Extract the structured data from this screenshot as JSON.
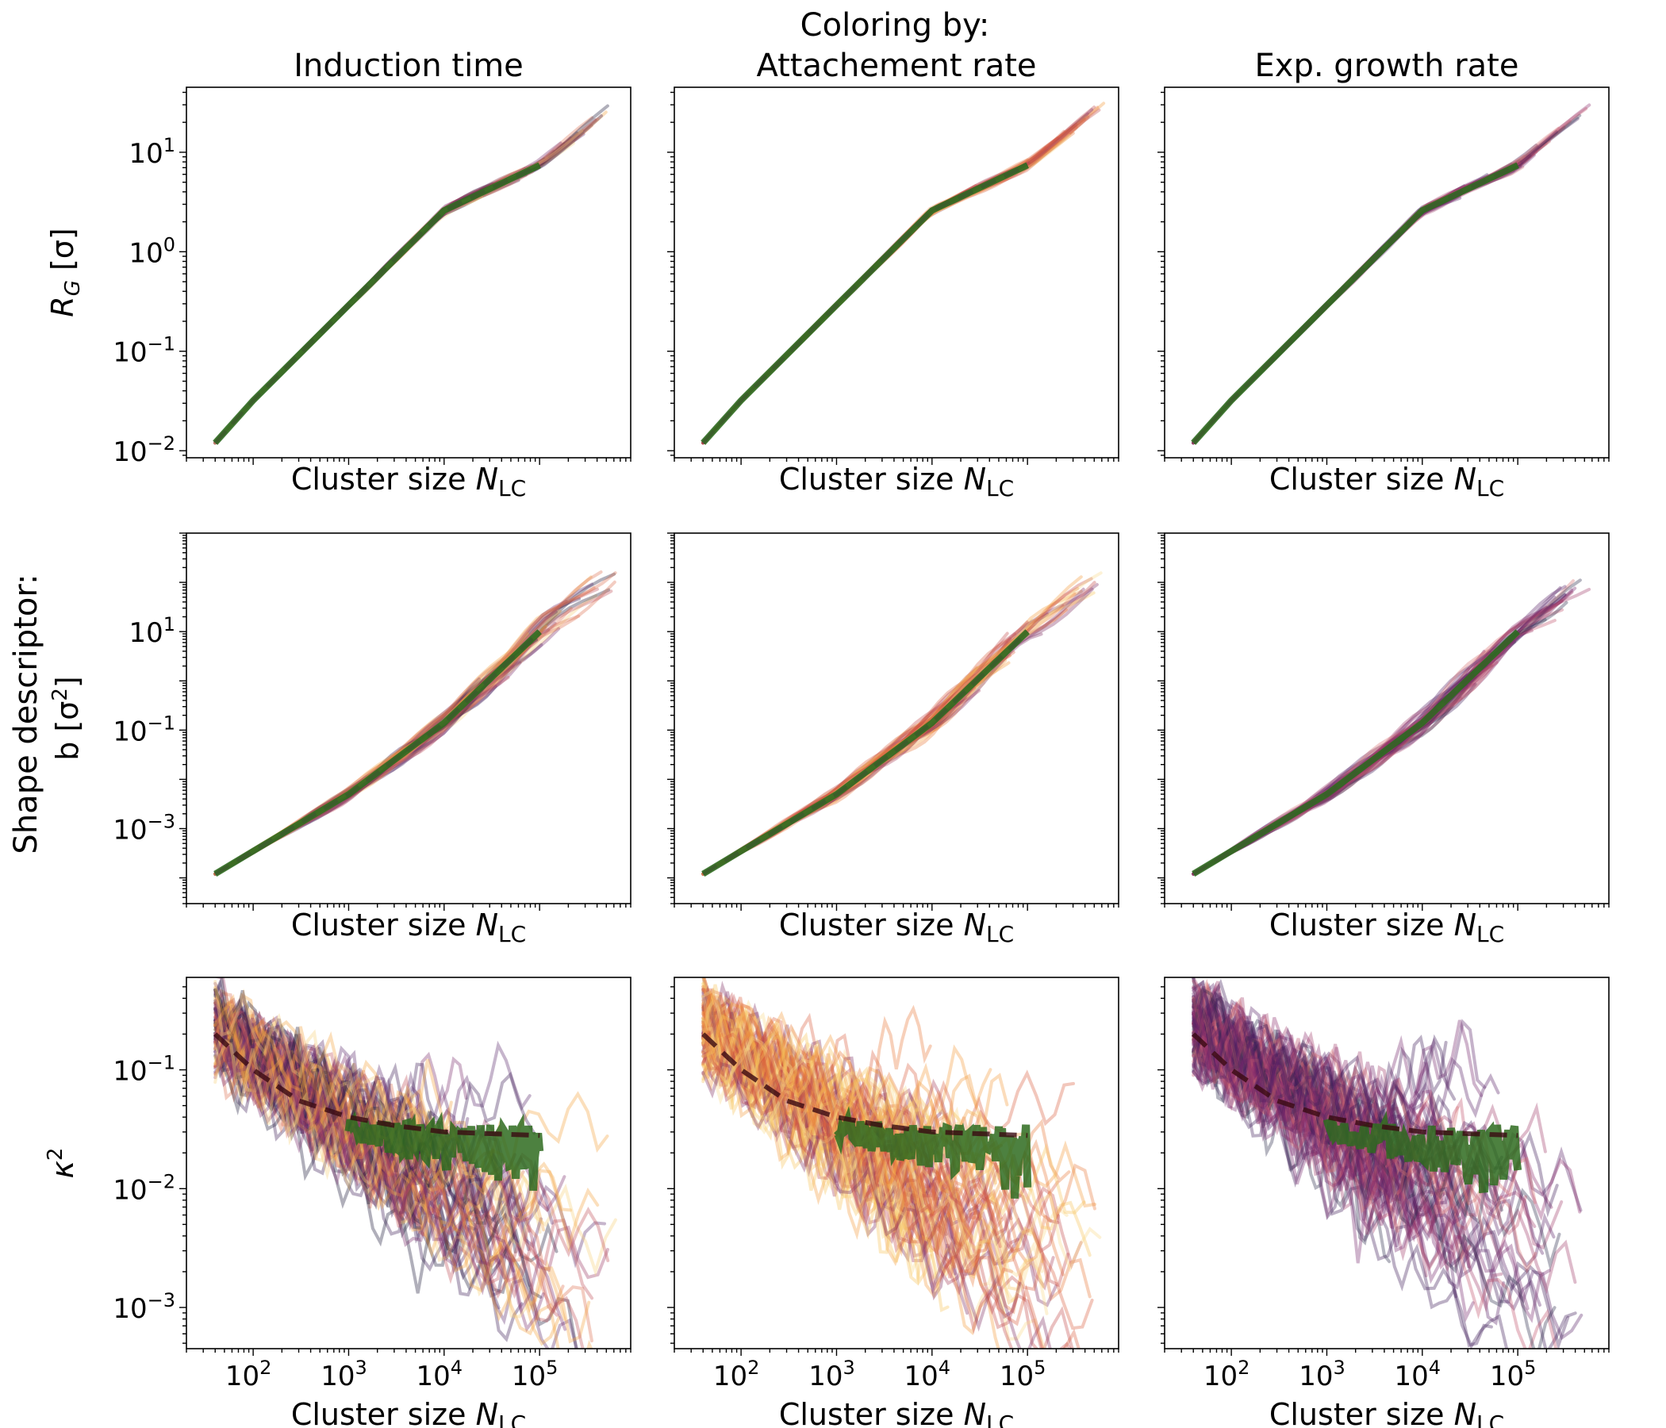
{
  "figure": {
    "suptitle": "Coloring by:",
    "column_titles": [
      "Induction time",
      "Attachement rate",
      "Exp. growth rate"
    ],
    "row_group_label": "Shape descriptor:",
    "colors": {
      "reference_line": "#2e6b1f",
      "dashed_fit": "#3a5f2a",
      "dark_dashed_fit": "#3a0a12",
      "palette_column_1": [
        "#1c1a3a",
        "#3b1e55",
        "#5c2a6c",
        "#7a2f6e",
        "#9a3a63",
        "#c0505a",
        "#de7050",
        "#f4a43e",
        "#f7d27a"
      ],
      "palette_column_2": [
        "#f5c35a",
        "#f39b3c",
        "#e8783a",
        "#d95f3f",
        "#f8d98a",
        "#c24a4a",
        "#a63d5a",
        "#7e2e62"
      ],
      "palette_column_3": [
        "#3f1e5a",
        "#5a2368",
        "#75296c",
        "#8b2f6c",
        "#a03c6a",
        "#c0506a",
        "#d87070",
        "#2a2a4a"
      ]
    }
  },
  "chart_data": [
    {
      "type": "line",
      "row": 1,
      "col": 1,
      "title": "Induction time",
      "xlabel": "Cluster size N_LC",
      "xlabel_main": "Cluster size ",
      "xlabel_italic": "N",
      "xlabel_sub": "LC",
      "ylabel": "R_G [σ]",
      "ylabel_main": "R",
      "ylabel_sub": "G",
      "ylabel_rest": " [σ]",
      "xscale": "log",
      "yscale": "log",
      "xlim": [
        20,
        900000
      ],
      "ylim": [
        0.0085,
        45
      ],
      "yticks": [
        {
          "value": 0.01,
          "label": "10",
          "exp": "−2"
        },
        {
          "value": 0.1,
          "label": "10",
          "exp": "−1"
        },
        {
          "value": 1,
          "label": "10",
          "exp": "0"
        },
        {
          "value": 10,
          "label": "10",
          "exp": "1"
        }
      ],
      "xticks": [],
      "series": [
        {
          "name": "mean fit (dashed)",
          "x": [
            40,
            100,
            1000,
            10000,
            100000
          ],
          "y": [
            0.012,
            0.032,
            0.29,
            2.6,
            7.4
          ]
        },
        {
          "name": "individual trajectories",
          "x": [
            40,
            600000
          ],
          "y": [
            0.012,
            30
          ]
        }
      ]
    },
    {
      "type": "line",
      "row": 1,
      "col": 2,
      "title": "Attachement rate",
      "xlabel": "Cluster size N_LC",
      "xlabel_main": "Cluster size ",
      "xlabel_italic": "N",
      "xlabel_sub": "LC",
      "xscale": "log",
      "yscale": "log",
      "xlim": [
        20,
        900000
      ],
      "ylim": [
        0.0085,
        45
      ],
      "yticks": [],
      "xticks": [],
      "series": [
        {
          "name": "mean fit (dashed)",
          "x": [
            40,
            100,
            1000,
            10000,
            100000
          ],
          "y": [
            0.012,
            0.032,
            0.29,
            2.6,
            7.4
          ]
        },
        {
          "name": "individual trajectories",
          "x": [
            40,
            600000
          ],
          "y": [
            0.012,
            30
          ]
        }
      ]
    },
    {
      "type": "line",
      "row": 1,
      "col": 3,
      "title": "Exp. growth rate",
      "xlabel": "Cluster size N_LC",
      "xlabel_main": "Cluster size ",
      "xlabel_italic": "N",
      "xlabel_sub": "LC",
      "xscale": "log",
      "yscale": "log",
      "xlim": [
        20,
        900000
      ],
      "ylim": [
        0.0085,
        45
      ],
      "yticks": [],
      "xticks": [],
      "series": [
        {
          "name": "mean fit (dashed)",
          "x": [
            40,
            100,
            1000,
            10000,
            100000
          ],
          "y": [
            0.012,
            0.032,
            0.29,
            2.6,
            7.4
          ]
        },
        {
          "name": "individual trajectories",
          "x": [
            40,
            600000
          ],
          "y": [
            0.012,
            30
          ]
        }
      ]
    },
    {
      "type": "line",
      "row": 2,
      "col": 1,
      "xlabel": "Cluster size N_LC",
      "xlabel_main": "Cluster size ",
      "xlabel_italic": "N",
      "xlabel_sub": "LC",
      "ylabel": "b [σ²]",
      "ylabel_main": "b [σ",
      "ylabel_sup": "2",
      "ylabel_rest": "]",
      "xscale": "log",
      "yscale": "log",
      "xlim": [
        20,
        900000
      ],
      "ylim": [
        3e-05,
        1000
      ],
      "yticks": [
        {
          "value": 0.001,
          "label": "10",
          "exp": "−3"
        },
        {
          "value": 0.1,
          "label": "10",
          "exp": "−1"
        },
        {
          "value": 10,
          "label": "10",
          "exp": "1"
        }
      ],
      "xticks": [],
      "series": [
        {
          "name": "mean fit (dashed)",
          "x": [
            40,
            100,
            1000,
            10000,
            100000
          ],
          "y": [
            0.00012,
            0.00035,
            0.005,
            0.14,
            10
          ]
        },
        {
          "name": "individual trajectories",
          "x": [
            40,
            600000
          ],
          "y": [
            0.0001,
            120
          ]
        }
      ]
    },
    {
      "type": "line",
      "row": 2,
      "col": 2,
      "xlabel": "Cluster size N_LC",
      "xlabel_main": "Cluster size ",
      "xlabel_italic": "N",
      "xlabel_sub": "LC",
      "xscale": "log",
      "yscale": "log",
      "xlim": [
        20,
        900000
      ],
      "ylim": [
        3e-05,
        1000
      ],
      "yticks": [],
      "xticks": [],
      "series": [
        {
          "name": "mean fit (dashed)",
          "x": [
            40,
            100,
            1000,
            10000,
            100000
          ],
          "y": [
            0.00012,
            0.00035,
            0.005,
            0.14,
            10
          ]
        },
        {
          "name": "individual trajectories",
          "x": [
            40,
            600000
          ],
          "y": [
            0.0001,
            120
          ]
        }
      ]
    },
    {
      "type": "line",
      "row": 2,
      "col": 3,
      "xlabel": "Cluster size N_LC",
      "xlabel_main": "Cluster size ",
      "xlabel_italic": "N",
      "xlabel_sub": "LC",
      "xscale": "log",
      "yscale": "log",
      "xlim": [
        20,
        900000
      ],
      "ylim": [
        3e-05,
        1000
      ],
      "yticks": [],
      "xticks": [],
      "series": [
        {
          "name": "mean fit (dashed)",
          "x": [
            40,
            100,
            1000,
            10000,
            100000
          ],
          "y": [
            0.00012,
            0.00035,
            0.005,
            0.14,
            10
          ]
        },
        {
          "name": "individual trajectories",
          "x": [
            40,
            600000
          ],
          "y": [
            0.0001,
            120
          ]
        }
      ]
    },
    {
      "type": "line",
      "row": 3,
      "col": 1,
      "xlabel": "Cluster size N_LC",
      "xlabel_main": "Cluster size ",
      "xlabel_italic": "N",
      "xlabel_sub": "LC",
      "ylabel": "κ²",
      "ylabel_main": "κ",
      "ylabel_sup": "2",
      "ylabel_rest": "",
      "xscale": "log",
      "yscale": "log",
      "xlim": [
        20,
        900000
      ],
      "ylim": [
        0.00045,
        0.6
      ],
      "yticks": [
        {
          "value": 0.001,
          "label": "10",
          "exp": "−3"
        },
        {
          "value": 0.01,
          "label": "10",
          "exp": "−2"
        },
        {
          "value": 0.1,
          "label": "10",
          "exp": "−1"
        }
      ],
      "xticks": [
        {
          "value": 100,
          "label": "10",
          "exp": "2"
        },
        {
          "value": 1000,
          "label": "10",
          "exp": "3"
        },
        {
          "value": 10000,
          "label": "10",
          "exp": "4"
        },
        {
          "value": 100000,
          "label": "10",
          "exp": "5"
        }
      ],
      "series": [
        {
          "name": "mean fit (dashed)",
          "x": [
            40,
            100,
            300,
            1000,
            3000,
            10000,
            100000
          ],
          "y": [
            0.2,
            0.1,
            0.055,
            0.04,
            0.034,
            0.03,
            0.028
          ]
        },
        {
          "name": "reference band",
          "x": [
            1000,
            10000,
            100000
          ],
          "y": [
            0.032,
            0.024,
            0.021
          ]
        }
      ]
    },
    {
      "type": "line",
      "row": 3,
      "col": 2,
      "xlabel": "Cluster size N_LC",
      "xlabel_main": "Cluster size ",
      "xlabel_italic": "N",
      "xlabel_sub": "LC",
      "xscale": "log",
      "yscale": "log",
      "xlim": [
        20,
        900000
      ],
      "ylim": [
        0.00045,
        0.6
      ],
      "yticks": [],
      "xticks": [
        {
          "value": 100,
          "label": "10",
          "exp": "2"
        },
        {
          "value": 1000,
          "label": "10",
          "exp": "3"
        },
        {
          "value": 10000,
          "label": "10",
          "exp": "4"
        },
        {
          "value": 100000,
          "label": "10",
          "exp": "5"
        }
      ],
      "series": [
        {
          "name": "mean fit (dashed)",
          "x": [
            40,
            100,
            300,
            1000,
            3000,
            10000,
            100000
          ],
          "y": [
            0.2,
            0.1,
            0.055,
            0.04,
            0.034,
            0.03,
            0.028
          ]
        },
        {
          "name": "reference band",
          "x": [
            1000,
            10000,
            100000
          ],
          "y": [
            0.032,
            0.024,
            0.021
          ]
        }
      ]
    },
    {
      "type": "line",
      "row": 3,
      "col": 3,
      "xlabel": "Cluster size N_LC",
      "xlabel_main": "Cluster size ",
      "xlabel_italic": "N",
      "xlabel_sub": "LC",
      "xscale": "log",
      "yscale": "log",
      "xlim": [
        20,
        900000
      ],
      "ylim": [
        0.00045,
        0.6
      ],
      "yticks": [],
      "xticks": [
        {
          "value": 100,
          "label": "10",
          "exp": "2"
        },
        {
          "value": 1000,
          "label": "10",
          "exp": "3"
        },
        {
          "value": 10000,
          "label": "10",
          "exp": "4"
        },
        {
          "value": 100000,
          "label": "10",
          "exp": "5"
        }
      ],
      "series": [
        {
          "name": "mean fit (dashed)",
          "x": [
            40,
            100,
            300,
            1000,
            3000,
            10000,
            100000
          ],
          "y": [
            0.2,
            0.1,
            0.055,
            0.04,
            0.034,
            0.03,
            0.028
          ]
        },
        {
          "name": "reference band",
          "x": [
            1000,
            10000,
            100000
          ],
          "y": [
            0.032,
            0.024,
            0.021
          ]
        }
      ]
    }
  ]
}
